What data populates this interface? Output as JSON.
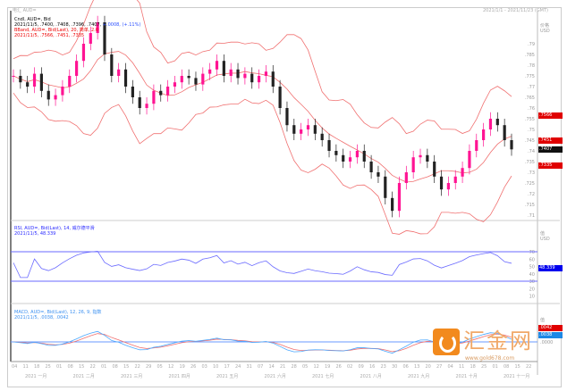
{
  "header": {
    "left": "电汇 AUD=",
    "right": "2021/1/1 - 2021/11/23 (GMT)"
  },
  "price_pane": {
    "legend1": "Cndl, AUD=, Bid",
    "legend2": "2021/11/5, .7400, .7408, .7396, .7407,",
    "legend2_change": "+.0008, (+.11%)",
    "legend3": "BBand, AUD=, Bid(Last), 20, 简单, 2.0",
    "legend4": "2021/11/5, .7566, .7451, .7335",
    "axis_title": "价格",
    "axis_unit": "USD",
    "tags": [
      {
        "label": ".7566",
        "value": 0.7566,
        "color": "#e00000"
      },
      {
        "label": ".7451",
        "value": 0.7451,
        "color": "#e00000"
      },
      {
        "label": ".7407",
        "value": 0.7407,
        "color": "#111111"
      },
      {
        "label": ".7335",
        "value": 0.7335,
        "color": "#e00000"
      }
    ]
  },
  "rsi_pane": {
    "legend1": "RSI, AUD=, Bid(Last), 14, 威尔德平滑",
    "legend2": "2021/11/5, 48.339",
    "axis_title": "值",
    "axis_unit": "USD",
    "tag": "48.339",
    "tag_color": "#0000ee"
  },
  "macd_pane": {
    "legend1": "MACD, AUD=, Bid(Last), 12, 26, 9, 指数",
    "legend2": "2021/11/5, .0038, .0042",
    "axis_title": "值",
    "tags": [
      {
        "label": ".0042",
        "color": "#e00000"
      },
      {
        "label": ".0038",
        "color": "#1e88e5"
      }
    ],
    "axis_labels": [
      ".0000"
    ]
  },
  "watermark": {
    "text": "汇金网",
    "url": "www.gold678.com"
  },
  "chart_data": [
    {
      "type": "candlestick",
      "name": "AUD=",
      "ylim": [
        0.71,
        0.79
      ],
      "yticks": [
        ".79",
        ".785",
        ".78",
        ".775",
        ".77",
        ".765",
        ".76",
        ".755",
        ".75",
        ".745",
        ".74",
        ".735",
        ".73",
        ".725",
        ".72",
        ".715",
        ".71"
      ],
      "close": [
        0.775,
        0.772,
        0.77,
        0.776,
        0.768,
        0.764,
        0.766,
        0.77,
        0.775,
        0.782,
        0.79,
        0.795,
        0.8,
        0.785,
        0.775,
        0.778,
        0.77,
        0.765,
        0.76,
        0.762,
        0.768,
        0.766,
        0.77,
        0.772,
        0.775,
        0.774,
        0.771,
        0.776,
        0.778,
        0.782,
        0.775,
        0.778,
        0.774,
        0.776,
        0.772,
        0.775,
        0.777,
        0.77,
        0.76,
        0.752,
        0.748,
        0.75,
        0.752,
        0.748,
        0.745,
        0.74,
        0.738,
        0.735,
        0.737,
        0.74,
        0.735,
        0.73,
        0.728,
        0.718,
        0.712,
        0.725,
        0.73,
        0.737,
        0.738,
        0.735,
        0.728,
        0.722,
        0.725,
        0.728,
        0.732,
        0.74,
        0.745,
        0.75,
        0.755,
        0.752,
        0.745,
        0.7407
      ],
      "bollinger": {
        "period": 20,
        "stddev": 2.0,
        "last": {
          "upper": 0.7566,
          "middle": 0.7451,
          "lower": 0.7335
        }
      }
    },
    {
      "type": "line",
      "name": "RSI",
      "ylim": [
        0,
        100
      ],
      "yticks": [
        "70",
        "60",
        "50",
        "40",
        "30",
        "20",
        "10"
      ],
      "levels": [
        70,
        30
      ],
      "last": 48.339
    },
    {
      "type": "line",
      "name": "MACD",
      "params": [
        12,
        26,
        9
      ],
      "last": {
        "macd": 0.0038,
        "signal": 0.0042
      }
    }
  ],
  "xaxis": {
    "days": [
      "04",
      "11",
      "18",
      "25",
      "01",
      "08",
      "15",
      "22",
      "01",
      "08",
      "15",
      "22",
      "29",
      "05",
      "12",
      "19",
      "26",
      "03",
      "10",
      "17",
      "24",
      "31",
      "07",
      "14",
      "21",
      "28",
      "05",
      "12",
      "19",
      "26",
      "02",
      "09",
      "16",
      "23",
      "30",
      "06",
      "13",
      "20",
      "27",
      "04",
      "11",
      "18",
      "25",
      "01",
      "08",
      "15",
      "22"
    ],
    "months": [
      "2021 一月",
      "2021 二月",
      "2021 三月",
      "2021 四月",
      "2021 五月",
      "2021 六月",
      "2021 七月",
      "2021 八月",
      "2021 九月",
      "2021 十月",
      "2021 十一月"
    ]
  }
}
